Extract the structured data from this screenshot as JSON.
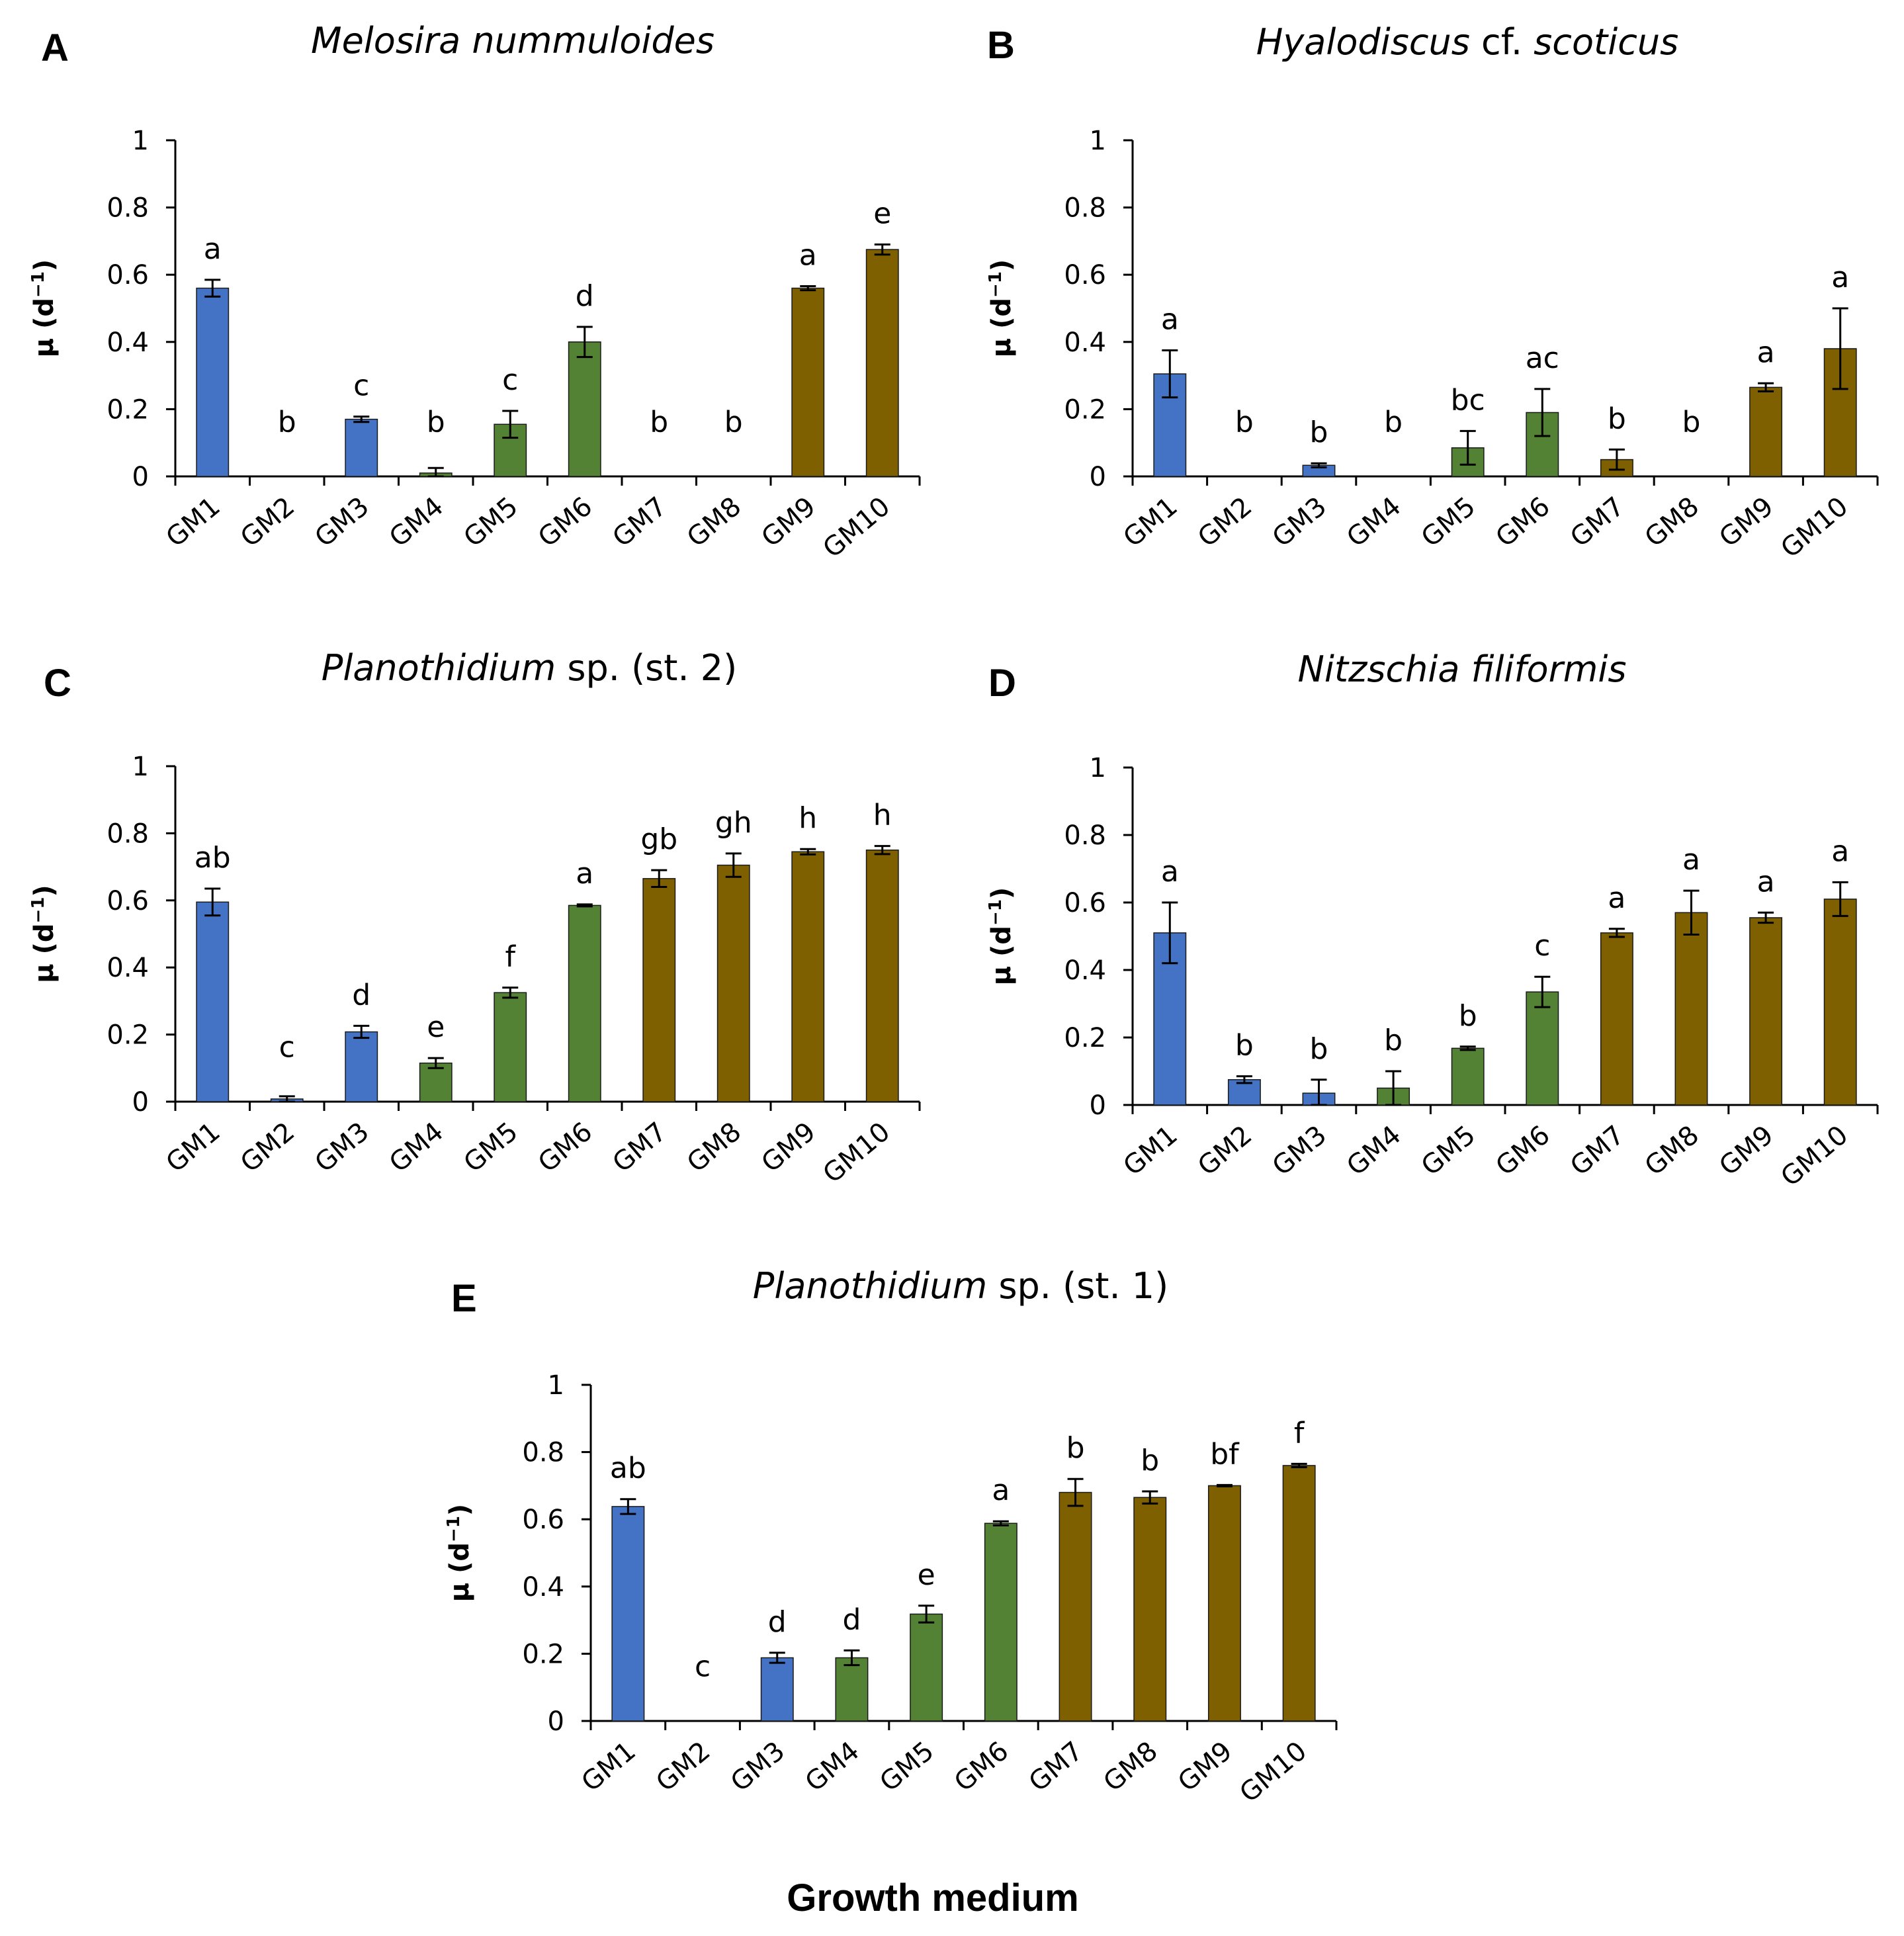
{
  "figure": {
    "x_axis_title": "Growth medium",
    "colors": {
      "blue": "#4472C4",
      "green": "#548235",
      "brown": "#7F6000",
      "axis": "#000000"
    }
  },
  "chart_data": [
    {
      "panel": "A",
      "type": "bar",
      "title_italic": "Melosira nummuloides",
      "title_rest": "",
      "ylabel_main": "μ (d",
      "ylabel_sup": "−1",
      "ylabel_end": ")",
      "ylim": [
        0,
        1
      ],
      "yticks": [
        "0",
        "0.2",
        "0.4",
        "0.6",
        "0.8",
        "1"
      ],
      "categories": [
        "GM1",
        "GM2",
        "GM3",
        "GM4",
        "GM5",
        "GM6",
        "GM7",
        "GM8",
        "GM9",
        "GM10"
      ],
      "values": [
        0.56,
        0,
        0.17,
        0.01,
        0.155,
        0.4,
        0,
        0,
        0.56,
        0.675
      ],
      "errors": [
        0.025,
        0,
        0.008,
        0.015,
        0.04,
        0.045,
        0,
        0,
        0.006,
        0.015
      ],
      "colors": [
        "blue",
        "blue",
        "blue",
        "green",
        "green",
        "green",
        "brown",
        "brown",
        "brown",
        "brown"
      ],
      "sig_labels": [
        "a",
        "b",
        "c",
        "b",
        "c",
        "d",
        "b",
        "b",
        "a",
        "e"
      ]
    },
    {
      "panel": "B",
      "type": "bar",
      "title_italic": "Hyalodiscus",
      "title_rest": "cf.",
      "title_italic2": "scoticus",
      "ylabel_main": "μ (d",
      "ylabel_sup": "−1",
      "ylabel_end": ")",
      "ylim": [
        0,
        1
      ],
      "yticks": [
        "0",
        "0.2",
        "0.4",
        "0.6",
        "0.8",
        "1"
      ],
      "categories": [
        "GM1",
        "GM2",
        "GM3",
        "GM4",
        "GM5",
        "GM6",
        "GM7",
        "GM8",
        "GM9",
        "GM10"
      ],
      "values": [
        0.305,
        0,
        0.033,
        0,
        0.085,
        0.19,
        0.05,
        0,
        0.265,
        0.38
      ],
      "errors": [
        0.07,
        0,
        0.006,
        0,
        0.05,
        0.07,
        0.03,
        0,
        0.012,
        0.12
      ],
      "colors": [
        "blue",
        "blue",
        "blue",
        "green",
        "green",
        "green",
        "brown",
        "brown",
        "brown",
        "brown"
      ],
      "sig_labels": [
        "a",
        "b",
        "b",
        "b",
        "bc",
        "ac",
        "b",
        "b",
        "a",
        "a"
      ]
    },
    {
      "panel": "C",
      "type": "bar",
      "title_italic": "Planothidium",
      "title_rest": "sp. (st. 2)",
      "ylabel_main": "μ (d",
      "ylabel_sup": "−1",
      "ylabel_end": ")",
      "ylim": [
        0,
        1
      ],
      "yticks": [
        "0",
        "0.2",
        "0.4",
        "0.6",
        "0.8",
        "1"
      ],
      "categories": [
        "GM1",
        "GM2",
        "GM3",
        "GM4",
        "GM5",
        "GM6",
        "GM7",
        "GM8",
        "GM9",
        "GM10"
      ],
      "values": [
        0.595,
        0.008,
        0.208,
        0.115,
        0.325,
        0.585,
        0.665,
        0.705,
        0.745,
        0.75
      ],
      "errors": [
        0.04,
        0.008,
        0.018,
        0.015,
        0.015,
        0.003,
        0.025,
        0.035,
        0.008,
        0.012
      ],
      "colors": [
        "blue",
        "blue",
        "blue",
        "green",
        "green",
        "green",
        "brown",
        "brown",
        "brown",
        "brown"
      ],
      "sig_labels": [
        "ab",
        "c",
        "d",
        "e",
        "f",
        "a",
        "gb",
        "gh",
        "h",
        "h"
      ]
    },
    {
      "panel": "D",
      "type": "bar",
      "title_italic": "Nitzschia filiformis",
      "title_rest": "",
      "ylabel_main": "μ (d",
      "ylabel_sup": "−1",
      "ylabel_end": ")",
      "ylim": [
        0,
        1
      ],
      "yticks": [
        "0",
        "0.2",
        "0.4",
        "0.6",
        "0.8",
        "1"
      ],
      "categories": [
        "GM1",
        "GM2",
        "GM3",
        "GM4",
        "GM5",
        "GM6",
        "GM7",
        "GM8",
        "GM9",
        "GM10"
      ],
      "values": [
        0.51,
        0.075,
        0.035,
        0.05,
        0.168,
        0.335,
        0.51,
        0.57,
        0.555,
        0.61
      ],
      "errors": [
        0.09,
        0.01,
        0.04,
        0.05,
        0.005,
        0.045,
        0.012,
        0.065,
        0.015,
        0.05
      ],
      "colors": [
        "blue",
        "blue",
        "blue",
        "green",
        "green",
        "green",
        "brown",
        "brown",
        "brown",
        "brown"
      ],
      "sig_labels": [
        "a",
        "b",
        "b",
        "b",
        "b",
        "c",
        "a",
        "a",
        "a",
        "a"
      ]
    },
    {
      "panel": "E",
      "type": "bar",
      "title_italic": "Planothidium",
      "title_rest": "sp. (st. 1)",
      "ylabel_main": "μ (d",
      "ylabel_sup": "−1",
      "ylabel_end": ")",
      "ylim": [
        0,
        1
      ],
      "yticks": [
        "0",
        "0.2",
        "0.4",
        "0.6",
        "0.8",
        "1"
      ],
      "categories": [
        "GM1",
        "GM2",
        "GM3",
        "GM4",
        "GM5",
        "GM6",
        "GM7",
        "GM8",
        "GM9",
        "GM10"
      ],
      "values": [
        0.638,
        0,
        0.188,
        0.188,
        0.318,
        0.588,
        0.68,
        0.665,
        0.7,
        0.76
      ],
      "errors": [
        0.022,
        0,
        0.015,
        0.022,
        0.025,
        0.006,
        0.04,
        0.018,
        0.002,
        0.005
      ],
      "colors": [
        "blue",
        "blue",
        "blue",
        "green",
        "green",
        "green",
        "brown",
        "brown",
        "brown",
        "brown"
      ],
      "sig_labels": [
        "ab",
        "c",
        "d",
        "d",
        "e",
        "a",
        "b",
        "b",
        "bf",
        "f"
      ]
    }
  ]
}
